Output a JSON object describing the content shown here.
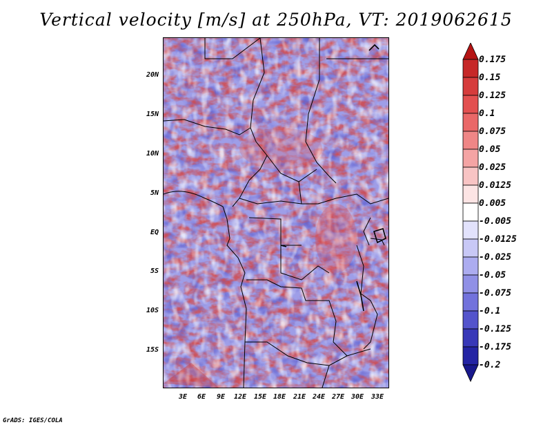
{
  "title": "Vertical velocity [m/s] at 250hPa, VT: 2019062615",
  "footer": "GrADS: IGES/COLA",
  "map": {
    "type": "shaded field map",
    "region": "Central Africa",
    "lon_range": [
      0,
      34
    ],
    "lat_range": [
      -20,
      25
    ],
    "lat_labels": [
      "20N",
      "15N",
      "10N",
      "5N",
      "EQ",
      "5S",
      "10S",
      "15S"
    ],
    "lon_labels": [
      "3E",
      "6E",
      "9E",
      "12E",
      "15E",
      "18E",
      "21E",
      "24E",
      "27E",
      "30E",
      "33E"
    ]
  },
  "colorbar": {
    "levels": [
      "0.175",
      "0.15",
      "0.125",
      "0.1",
      "0.075",
      "0.05",
      "0.025",
      "0.0125",
      "0.005",
      "-0.005",
      "-0.0125",
      "-0.025",
      "-0.05",
      "-0.075",
      "-0.1",
      "-0.125",
      "-0.175",
      "-0.2"
    ],
    "colors": [
      "#b51414",
      "#c62828",
      "#d63c3c",
      "#e35050",
      "#ea6868",
      "#ef8686",
      "#f4a4a4",
      "#f8c4c4",
      "#fce4e4",
      "#ffffff",
      "#e2e2fc",
      "#c8c8f6",
      "#acacf0",
      "#9090e6",
      "#7272dc",
      "#5454cc",
      "#3838b8",
      "#2424a4",
      "#18188c"
    ]
  }
}
